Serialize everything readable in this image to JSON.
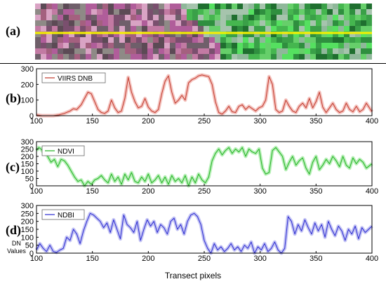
{
  "panels": {
    "a": "(a)",
    "b": "(b)",
    "c": "(c)",
    "d": "(d)"
  },
  "image": {
    "left_color": "#8c5a7a",
    "left_accent": "#d24fb0",
    "right_color": "#3aa84a",
    "right_accent": "#55e060",
    "transect_color": "#f5f000"
  },
  "dn_label": [
    "DN",
    "Values"
  ],
  "xlabel": "Transect pixels",
  "chart_data": [
    {
      "type": "line",
      "series": [
        {
          "name": "VIIRS DNB",
          "color": "#c0392b",
          "glow": "#f4c2be",
          "x": [
            100,
            105,
            110,
            115,
            120,
            125,
            130,
            133,
            136,
            140,
            143,
            146,
            149,
            152,
            155,
            158,
            161,
            164,
            167,
            170,
            173,
            176,
            179,
            182,
            185,
            188,
            191,
            194,
            197,
            200,
            203,
            206,
            209,
            212,
            215,
            218,
            221,
            224,
            227,
            230,
            233,
            236,
            239,
            242,
            245,
            248,
            251,
            254,
            257,
            260,
            263,
            266,
            269,
            272,
            275,
            278,
            281,
            284,
            287,
            290,
            293,
            296,
            299,
            302,
            305,
            308,
            311,
            314,
            317,
            320,
            323,
            326,
            329,
            332,
            335,
            338,
            341,
            344,
            347,
            350,
            353,
            356,
            359,
            362,
            365,
            368,
            371,
            374,
            377,
            380,
            383,
            386,
            389,
            392,
            395,
            400
          ],
          "y": [
            5,
            0,
            0,
            0,
            5,
            15,
            30,
            45,
            40,
            70,
            110,
            150,
            140,
            90,
            40,
            20,
            15,
            30,
            100,
            50,
            20,
            30,
            110,
            245,
            150,
            90,
            50,
            60,
            110,
            55,
            30,
            20,
            40,
            140,
            220,
            255,
            150,
            80,
            100,
            130,
            100,
            210,
            230,
            240,
            255,
            260,
            255,
            250,
            200,
            90,
            20,
            10,
            30,
            60,
            25,
            20,
            60,
            70,
            40,
            60,
            45,
            30,
            50,
            60,
            100,
            250,
            200,
            40,
            20,
            30,
            100,
            60,
            30,
            20,
            60,
            80,
            50,
            110,
            50,
            90,
            150,
            55,
            20,
            50,
            80,
            40,
            20,
            30,
            80,
            40,
            25,
            60,
            25,
            40,
            80,
            25
          ]
        }
      ],
      "xlim": [
        100,
        400
      ],
      "ylim": [
        0,
        300
      ],
      "xticks": [
        100,
        150,
        200,
        250,
        300,
        350,
        400
      ],
      "yticks": [
        0,
        100,
        200,
        300
      ]
    },
    {
      "type": "line",
      "series": [
        {
          "name": "NDVI",
          "color": "#22b022",
          "glow": "#b8f0b8",
          "x": [
            100,
            102,
            104,
            106,
            108,
            110,
            113,
            116,
            119,
            122,
            125,
            128,
            131,
            134,
            137,
            140,
            143,
            146,
            149,
            152,
            155,
            158,
            161,
            164,
            167,
            170,
            173,
            176,
            179,
            182,
            185,
            188,
            191,
            194,
            197,
            200,
            203,
            206,
            209,
            212,
            215,
            218,
            221,
            224,
            227,
            230,
            233,
            236,
            239,
            242,
            245,
            248,
            251,
            254,
            257,
            260,
            263,
            266,
            269,
            272,
            275,
            278,
            281,
            284,
            287,
            290,
            293,
            296,
            299,
            302,
            305,
            308,
            311,
            314,
            317,
            320,
            323,
            326,
            329,
            332,
            335,
            338,
            341,
            344,
            347,
            350,
            353,
            356,
            359,
            362,
            365,
            368,
            371,
            374,
            377,
            380,
            383,
            386,
            389,
            392,
            395,
            400
          ],
          "y": [
            240,
            260,
            250,
            230,
            255,
            200,
            160,
            180,
            130,
            180,
            170,
            140,
            100,
            60,
            30,
            40,
            0,
            30,
            10,
            40,
            50,
            70,
            40,
            20,
            80,
            30,
            60,
            10,
            80,
            40,
            90,
            30,
            20,
            60,
            30,
            80,
            20,
            40,
            70,
            20,
            60,
            10,
            70,
            30,
            50,
            20,
            70,
            0,
            60,
            20,
            80,
            40,
            20,
            60,
            170,
            220,
            250,
            210,
            240,
            260,
            220,
            250,
            230,
            260,
            200,
            250,
            230,
            220,
            250,
            120,
            80,
            90,
            240,
            260,
            230,
            200,
            110,
            160,
            200,
            140,
            170,
            190,
            120,
            80,
            160,
            200,
            110,
            140,
            180,
            150,
            200,
            170,
            130,
            200,
            140,
            120,
            190,
            150,
            180,
            160,
            120,
            150
          ]
        }
      ],
      "xlim": [
        100,
        400
      ],
      "ylim": [
        0,
        300
      ],
      "xticks": [
        100,
        150,
        200,
        250,
        300,
        350,
        400
      ],
      "yticks": [
        0,
        50,
        100,
        150,
        200,
        250,
        300
      ]
    },
    {
      "type": "line",
      "series": [
        {
          "name": "NDBI",
          "color": "#2a2ad0",
          "glow": "#c4c4f4",
          "x": [
            100,
            103,
            106,
            109,
            112,
            115,
            118,
            121,
            124,
            127,
            130,
            133,
            136,
            139,
            142,
            145,
            148,
            151,
            154,
            157,
            160,
            163,
            166,
            169,
            172,
            175,
            178,
            181,
            184,
            187,
            190,
            193,
            196,
            199,
            202,
            205,
            208,
            211,
            214,
            217,
            220,
            223,
            226,
            229,
            232,
            235,
            238,
            241,
            244,
            247,
            250,
            253,
            256,
            259,
            262,
            265,
            268,
            271,
            274,
            277,
            280,
            283,
            286,
            289,
            292,
            295,
            298,
            301,
            304,
            307,
            310,
            313,
            316,
            319,
            322,
            325,
            328,
            331,
            334,
            337,
            340,
            343,
            346,
            349,
            352,
            355,
            358,
            361,
            364,
            367,
            370,
            373,
            376,
            379,
            382,
            385,
            388,
            391,
            394,
            397,
            400
          ],
          "y": [
            20,
            60,
            30,
            10,
            50,
            10,
            5,
            20,
            30,
            100,
            80,
            150,
            120,
            60,
            140,
            200,
            250,
            240,
            220,
            200,
            160,
            190,
            130,
            210,
            150,
            90,
            240,
            180,
            160,
            130,
            200,
            80,
            150,
            210,
            170,
            200,
            130,
            180,
            160,
            120,
            200,
            220,
            150,
            180,
            120,
            200,
            240,
            250,
            230,
            180,
            80,
            30,
            0,
            60,
            20,
            40,
            10,
            30,
            60,
            20,
            40,
            10,
            50,
            30,
            70,
            0,
            40,
            20,
            60,
            10,
            30,
            70,
            20,
            0,
            30,
            230,
            200,
            120,
            180,
            140,
            210,
            160,
            120,
            190,
            140,
            180,
            100,
            200,
            150,
            110,
            170,
            140,
            80,
            150,
            120,
            170,
            90,
            160,
            130,
            150,
            170
          ]
        }
      ],
      "xlim": [
        100,
        400
      ],
      "ylim": [
        0,
        300
      ],
      "xticks": [
        100,
        150,
        200,
        250,
        300,
        350,
        400
      ],
      "yticks": [
        0,
        50,
        100,
        150,
        200,
        250,
        300
      ]
    }
  ]
}
